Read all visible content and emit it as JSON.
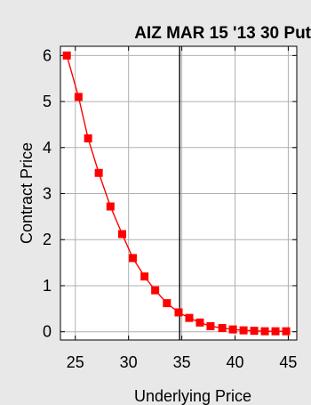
{
  "chart_data": {
    "type": "line",
    "title": "AIZ MAR 15 '13 30 Put",
    "xlabel": "Underlying Price",
    "ylabel": "Contract Price",
    "xlim": [
      23.6,
      45.8
    ],
    "ylim": [
      -0.18,
      6.2
    ],
    "x_ticks": [
      25,
      30,
      35,
      40,
      45
    ],
    "y_ticks": [
      0,
      1,
      2,
      3,
      4,
      5,
      6
    ],
    "grid": true,
    "reference_line_x": 34.8,
    "series": [
      {
        "marker": "square",
        "color": "#ff0000",
        "x": [
          24.2,
          25.3,
          26.2,
          27.2,
          28.3,
          29.4,
          30.4,
          31.5,
          32.5,
          33.6,
          34.7,
          35.7,
          36.7,
          37.7,
          38.8,
          39.8,
          40.8,
          41.8,
          42.8,
          43.8,
          44.8
        ],
        "y": [
          6.0,
          5.1,
          4.2,
          3.45,
          2.72,
          2.12,
          1.6,
          1.2,
          0.9,
          0.62,
          0.42,
          0.3,
          0.2,
          0.12,
          0.08,
          0.05,
          0.03,
          0.02,
          0.01,
          0.01,
          0.01
        ]
      }
    ]
  }
}
